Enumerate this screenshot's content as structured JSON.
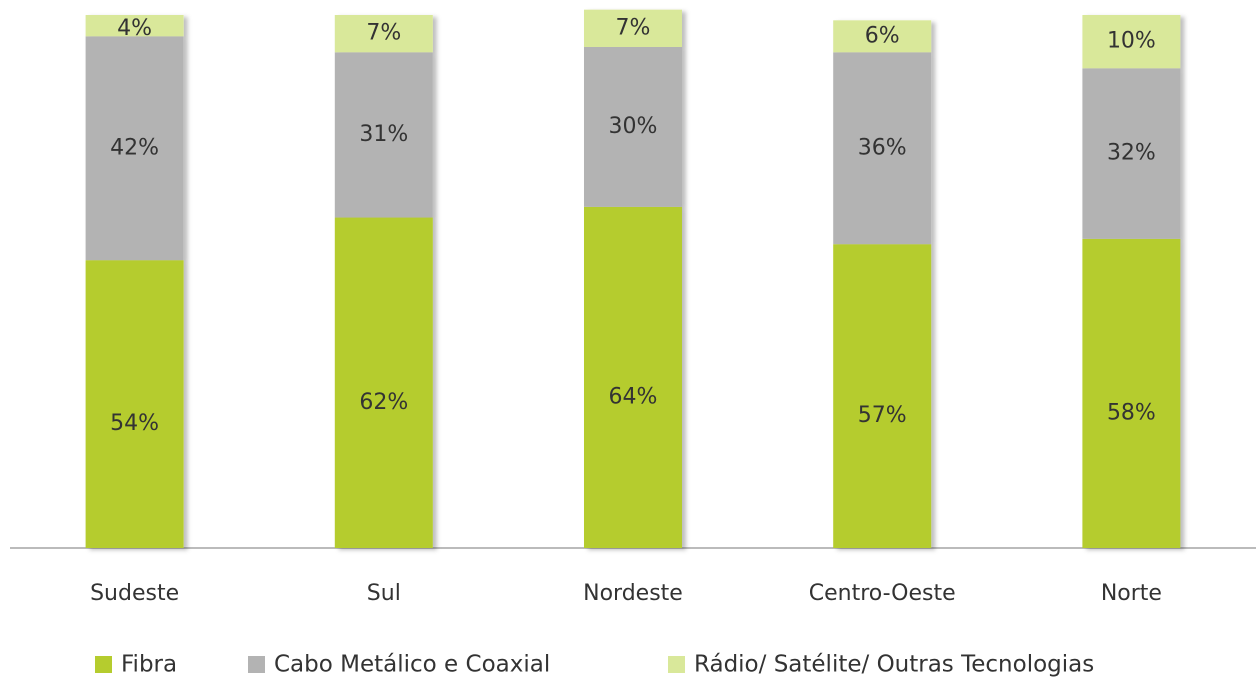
{
  "chart_data": {
    "type": "stacked_bar",
    "categories": [
      "Sudeste",
      "Sul",
      "Nordeste",
      "Centro-Oeste",
      "Norte"
    ],
    "series": [
      {
        "name": "Fibra",
        "color": "#b5cc2e",
        "values": [
          54,
          62,
          64,
          57,
          58
        ],
        "value_labels": [
          "54%",
          "62%",
          "64%",
          "57%",
          "58%"
        ]
      },
      {
        "name": "Cabo Metálico e Coaxial",
        "color": "#b3b3b3",
        "values": [
          42,
          31,
          30,
          36,
          32
        ],
        "value_labels": [
          "42%",
          "31%",
          "30%",
          "36%",
          "32%"
        ]
      },
      {
        "name": "Rádio/ Satélite/ Outras Tecnologias",
        "color": "#d9e89a",
        "values": [
          4,
          7,
          7,
          6,
          10
        ],
        "value_labels": [
          "4%",
          "7%",
          "7%",
          "6%",
          "10%"
        ]
      }
    ],
    "ylim": [
      0,
      100
    ],
    "legend": "bottom"
  }
}
